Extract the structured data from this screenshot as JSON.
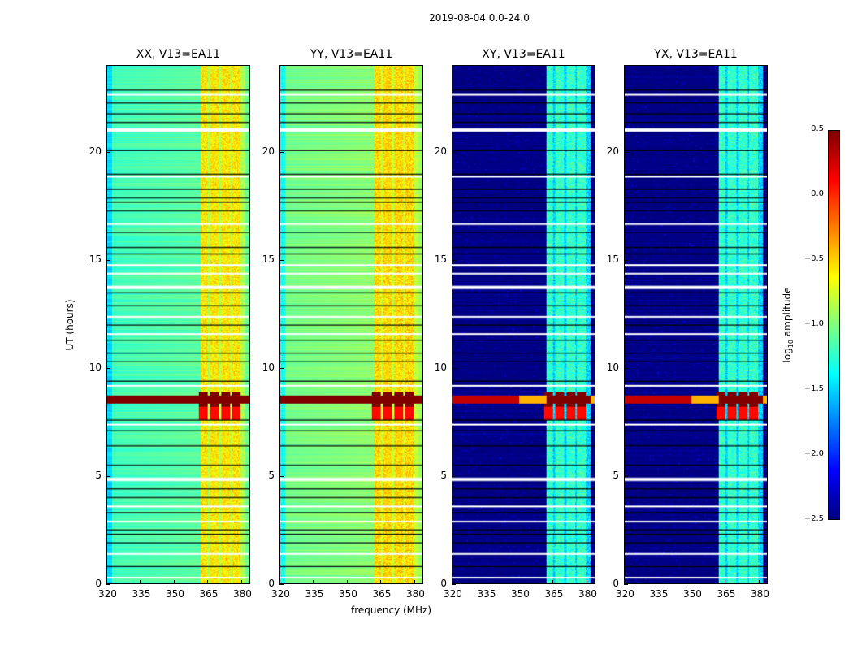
{
  "chart_data": {
    "type": "heatmap",
    "title": "2019-08-04 0.0-24.0",
    "xlabel": "frequency (MHz)",
    "ylabel": "UT (hours)",
    "xlim": [
      320,
      384
    ],
    "ylim": [
      0,
      24
    ],
    "xticks": [
      "320",
      "335",
      "350",
      "365",
      "380"
    ],
    "xtick_values": [
      320,
      335,
      350,
      365,
      380
    ],
    "yticks": [
      "0",
      "5",
      "10",
      "15",
      "20"
    ],
    "ytick_values": [
      0,
      5,
      10,
      15,
      20
    ],
    "colorbar": {
      "label_prefix": "log",
      "label_sub": "10",
      "label_suffix": " amplitude",
      "range": [
        -2.5,
        0.5
      ],
      "ticks": [
        "0.5",
        "0.0",
        "−0.5",
        "−1.0",
        "−1.5",
        "−2.0",
        "−2.5"
      ],
      "tick_values": [
        0.5,
        0.0,
        -0.5,
        -1.0,
        -1.5,
        -2.0,
        -2.5
      ],
      "colormap": "jet"
    },
    "panels": [
      {
        "title": "XX, V13=EA11",
        "background_log_amp": -1.15,
        "band_log_amp": -0.65
      },
      {
        "title": "YY, V13=EA11",
        "background_log_amp": -1.0,
        "band_log_amp": -0.6
      },
      {
        "title": "XY, V13=EA11",
        "background_log_amp": -2.5,
        "band_log_amp": -1.3
      },
      {
        "title": "YX, V13=EA11",
        "background_log_amp": -2.5,
        "band_log_amp": -1.3
      }
    ],
    "band_channels_mhz": [
      363,
      368,
      373,
      378
    ],
    "rfi_burst_ut": [
      8.2,
      8.9
    ],
    "rfi_burst_log_amp": 0.5,
    "flagged_ut": [
      0.3,
      1.4,
      2.9,
      3.6,
      4.9,
      7.4,
      9.2,
      11.6,
      12.4,
      13.8,
      14.4,
      14.8,
      16.7,
      18.9,
      21.1,
      22.7
    ],
    "scan_boundaries_ut": [
      0.8,
      1.9,
      2.3,
      2.5,
      3.3,
      4.0,
      4.4,
      5.5,
      6.4,
      7.1,
      7.6,
      9.4,
      10.3,
      10.7,
      11.3,
      12.0,
      12.9,
      13.5,
      15.3,
      15.6,
      16.3,
      17.3,
      17.7,
      17.9,
      18.3,
      19.0,
      20.1,
      21.4,
      21.8,
      22.3,
      22.9
    ]
  }
}
